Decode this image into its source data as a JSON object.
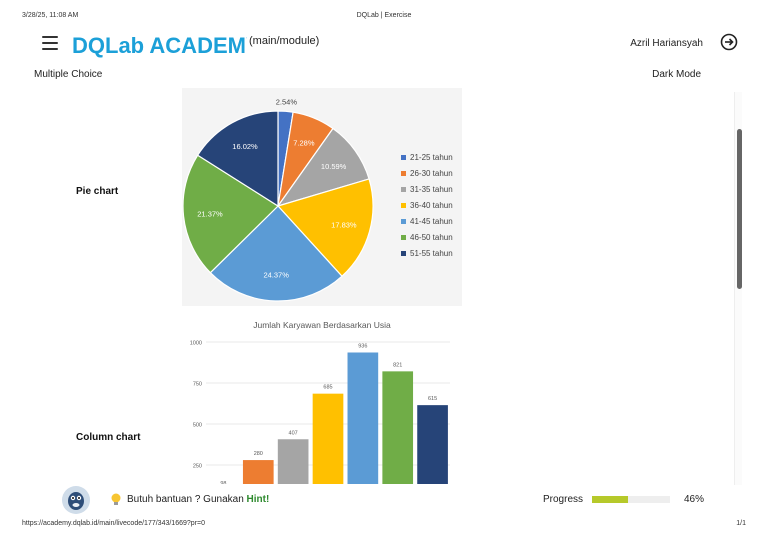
{
  "print": {
    "date": "3/28/25, 11:08 AM",
    "title": "DQLab | Exercise",
    "url": "https://academy.dqlab.id/main/livecode/177/343/1669?pr=0",
    "page": "1/1"
  },
  "header": {
    "logo_text": "DQLab ACADEMY",
    "module": "(main/module)",
    "user_name": "Azril Hariansyah"
  },
  "question": {
    "section_title": "Multiple Choice",
    "dark_mode_label": "Dark Mode",
    "options": [
      {
        "label": "Pie chart"
      },
      {
        "label": "Column chart"
      }
    ]
  },
  "chart_data": [
    {
      "type": "pie",
      "title": "",
      "categories": [
        "21-25 tahun",
        "26-30 tahun",
        "31-35 tahun",
        "36-40 tahun",
        "41-45 tahun",
        "46-50 tahun",
        "51-55 tahun"
      ],
      "values": [
        2.54,
        7.28,
        10.59,
        17.83,
        24.37,
        21.37,
        16.02
      ],
      "labels": [
        "2.54%",
        "7.28%",
        "10.59%",
        "17.83%",
        "24.37%",
        "21.37%",
        "16.02%"
      ],
      "colors": [
        "#4472C4",
        "#ED7D31",
        "#A5A5A5",
        "#FFC000",
        "#5B9BD5",
        "#70AD47",
        "#264478"
      ],
      "legend": "right"
    },
    {
      "type": "bar",
      "title": "Jumlah Karyawan Berdasarkan Usia",
      "categories": [
        "21-25 tahun",
        "26-30 tahun",
        "31-35 tahun",
        "36-40 tahun",
        "41-45 tahun",
        "46-50 tahun",
        "51-55 tahun"
      ],
      "values": [
        98,
        280,
        407,
        685,
        936,
        821,
        615
      ],
      "value_labels": [
        "98",
        "280",
        "407",
        "685",
        "936",
        "821",
        "615"
      ],
      "colors": [
        "#4472C4",
        "#ED7D31",
        "#A5A5A5",
        "#FFC000",
        "#5B9BD5",
        "#70AD47",
        "#264478"
      ],
      "y_ticks": [
        "1000",
        "750",
        "500",
        "250"
      ],
      "ylim": [
        0,
        1000
      ],
      "grid": true
    }
  ],
  "footer": {
    "help_text": "Butuh bantuan ? Gunakan ",
    "hint_label": "Hint!",
    "progress_label": "Progress",
    "progress_value": "46%",
    "progress_fraction": 0.46
  }
}
